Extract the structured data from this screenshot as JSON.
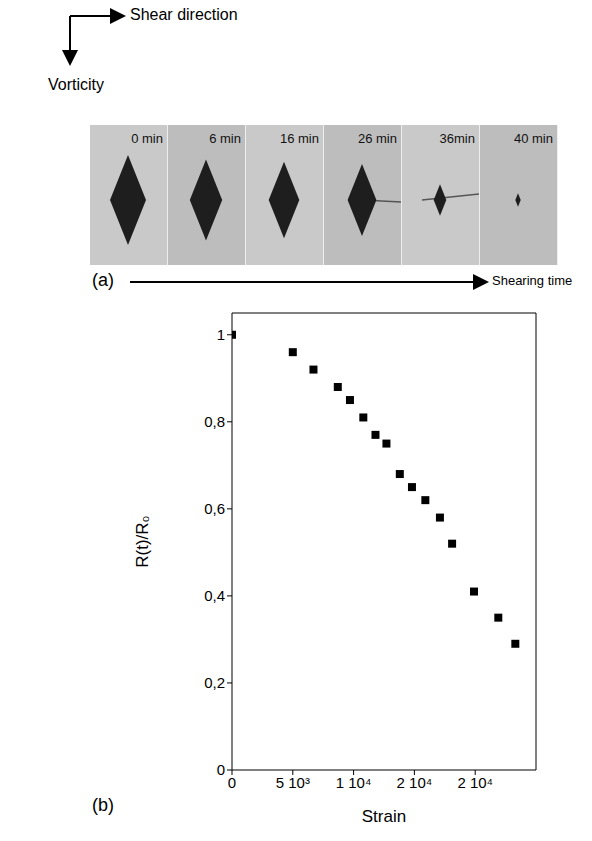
{
  "panel_a": {
    "direction_labels": {
      "horizontal": "Shear direction",
      "vertical": "Vorticity"
    },
    "frames": [
      "0 min",
      "6 min",
      "16 min",
      "26 min",
      "36min",
      "40 min"
    ],
    "label": "(a)",
    "arrow_label": "Shearing time"
  },
  "chart_data": {
    "type": "scatter",
    "panel_label": "(b)",
    "x_label": "Strain",
    "y_label": "R(t)/R₀",
    "x": [
      0,
      5000,
      6700,
      8700,
      9700,
      10800,
      11800,
      12700,
      13800,
      14800,
      15900,
      17100,
      18100,
      19900,
      21900,
      23300
    ],
    "values": [
      1,
      0.96,
      0.92,
      0.88,
      0.85,
      0.81,
      0.77,
      0.75,
      0.68,
      0.65,
      0.62,
      0.58,
      0.52,
      0.41,
      0.35,
      0.29
    ],
    "xlim": [
      0,
      25000
    ],
    "ylim": [
      0,
      1.05
    ],
    "xticks": [
      0,
      {
        "value": 5000,
        "label": "5 10³"
      },
      {
        "value": 10000,
        "label": "1 10⁴"
      },
      {
        "value": 15000,
        "label": "2 10⁴"
      },
      {
        "value": 20000,
        "label": "2 10⁴"
      }
    ],
    "yticks": [
      0,
      {
        "value": 0.2,
        "label": "0,2"
      },
      {
        "value": 0.4,
        "label": "0,4"
      },
      {
        "value": 0.6,
        "label": "0,6"
      },
      {
        "value": 0.8,
        "label": "0,8"
      },
      1
    ],
    "marker": "square",
    "color": "#000000",
    "grid": false
  }
}
